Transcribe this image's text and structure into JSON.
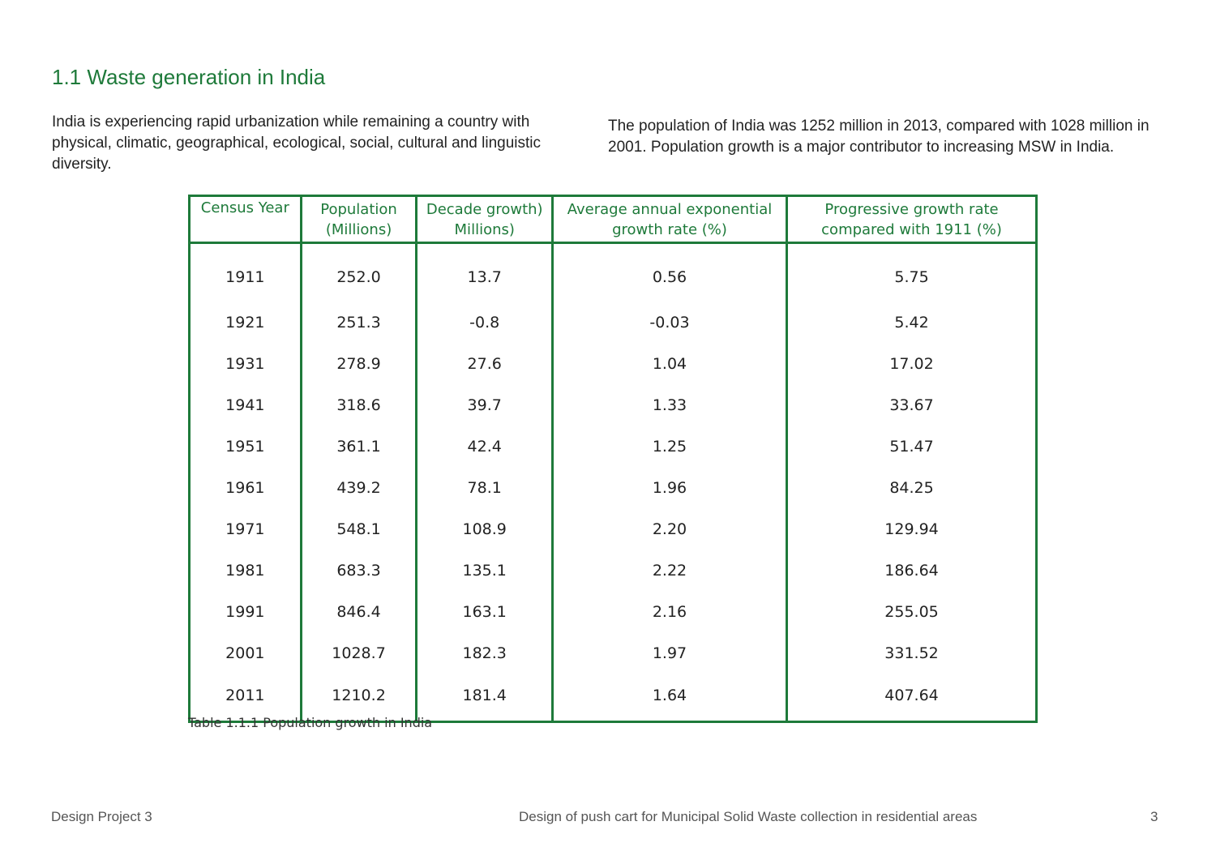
{
  "section": {
    "title": "1.1 Waste generation in India"
  },
  "paragraphs": {
    "left": "India is experiencing rapid urbanization while remaining a country with physical, climatic, geographical, ecological, social, cultural and linguistic diversity.",
    "right": "The population of India was 1252 million in 2013, compared with 1028 million in 2001. Population growth is a major contributor to increasing MSW in India."
  },
  "table": {
    "headers": [
      [
        "Census Year",
        ""
      ],
      [
        "Population",
        "(Millions)"
      ],
      [
        "Decade growth)",
        "Millions)"
      ],
      [
        "Average annual exponential",
        "growth rate (%)"
      ],
      [
        "Progressive growth rate",
        "compared with 1911 (%)"
      ]
    ],
    "rows": [
      [
        "1911",
        "252.0",
        "13.7",
        "0.56",
        "5.75"
      ],
      [
        "1921",
        "251.3",
        "-0.8",
        "-0.03",
        "5.42"
      ],
      [
        "1931",
        "278.9",
        "27.6",
        "1.04",
        "17.02"
      ],
      [
        "1941",
        "318.6",
        "39.7",
        "1.33",
        "33.67"
      ],
      [
        "1951",
        "361.1",
        "42.4",
        "1.25",
        "51.47"
      ],
      [
        "1961",
        "439.2",
        "78.1",
        "1.96",
        "84.25"
      ],
      [
        "1971",
        "548.1",
        "108.9",
        "2.20",
        "129.94"
      ],
      [
        "1981",
        "683.3",
        "135.1",
        "2.22",
        "186.64"
      ],
      [
        "1991",
        "846.4",
        "163.1",
        "2.16",
        "255.05"
      ],
      [
        "2001",
        "1028.7",
        "182.3",
        "1.97",
        "331.52"
      ],
      [
        "2011",
        "1210.2",
        "181.4",
        "1.64",
        "407.64"
      ]
    ],
    "caption": "Table 1.1.1 Population growth in India"
  },
  "footer": {
    "left": "Design Project 3",
    "center": "Design of push cart for Municipal Solid Waste collection in residential areas",
    "page_number": "3"
  },
  "colors": {
    "accent": "#1e7a3a",
    "text": "#222222",
    "footer_text": "#555555"
  }
}
